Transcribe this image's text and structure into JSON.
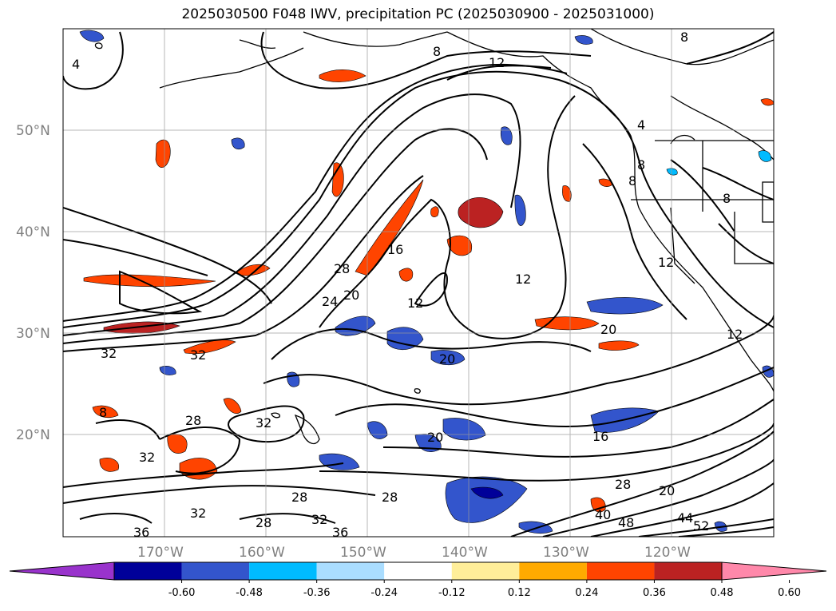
{
  "title": "2025030500 F048 IWV, precipitation PC (2025030900 - 2025031000)",
  "lat_labels": [
    "50°N",
    "40°N",
    "30°N",
    "20°N"
  ],
  "lon_labels": [
    "170°W",
    "160°W",
    "150°W",
    "140°W",
    "130°W",
    "120°W"
  ],
  "contour_labels": [
    "4",
    "8",
    "12",
    "8",
    "16",
    "28",
    "20",
    "24",
    "12",
    "12",
    "20",
    "20",
    "32",
    "32",
    "28",
    "8",
    "32",
    "32",
    "28",
    "20",
    "16",
    "28",
    "36",
    "28",
    "32",
    "36",
    "32",
    "28",
    "40",
    "48",
    "44",
    "52",
    "12",
    "12",
    "8",
    "4",
    "8",
    "8"
  ],
  "colorbar": {
    "colors": [
      "#9933cc",
      "#000099",
      "#3355cc",
      "#00bbff",
      "#aaddff",
      "#ffffff",
      "#ffee99",
      "#ffaa00",
      "#ff4400",
      "#bb2222",
      "#ff88aa"
    ],
    "ticks": [
      "-0.60",
      "-0.48",
      "-0.36",
      "-0.24",
      "-0.12",
      "0.12",
      "0.24",
      "0.36",
      "0.48",
      "0.60"
    ]
  }
}
